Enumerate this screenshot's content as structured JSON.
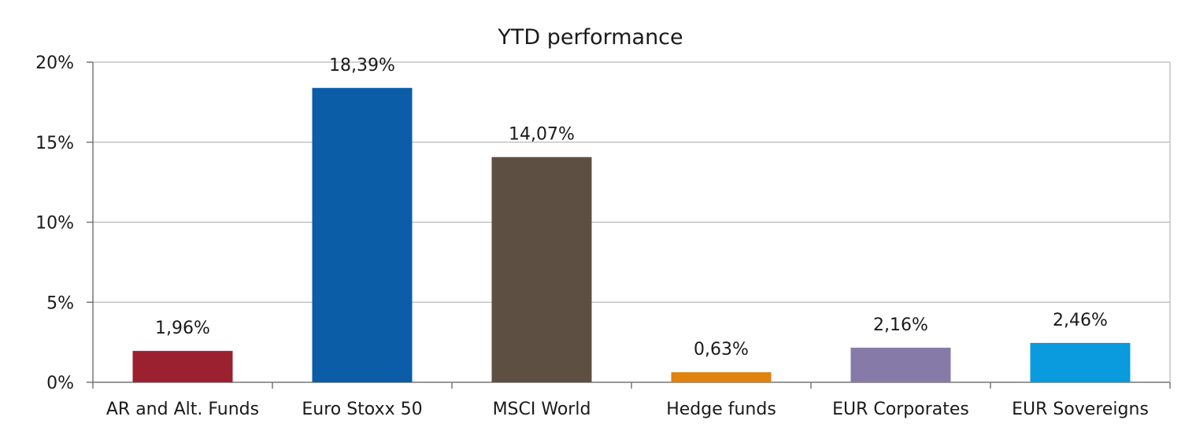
{
  "chart_data": {
    "type": "bar",
    "title": "YTD performance",
    "xlabel": "",
    "ylabel": "",
    "categories": [
      "AR and Alt. Funds",
      "Euro Stoxx 50",
      "MSCI World",
      "Hedge funds",
      "EUR Corporates",
      "EUR Sovereigns"
    ],
    "values": [
      1.96,
      18.39,
      14.07,
      0.63,
      2.16,
      2.46
    ],
    "data_labels": [
      "1,96%",
      "18,39%",
      "14,07%",
      "0,63%",
      "2,16%",
      "2,46%"
    ],
    "colors": [
      "#9b2030",
      "#0b5da8",
      "#5d4f42",
      "#e0820e",
      "#857aa8",
      "#0a9ade"
    ],
    "ylim": [
      0,
      20
    ],
    "yticks": [
      0,
      5,
      10,
      15,
      20
    ],
    "ytick_labels": [
      "0%",
      "5%",
      "10%",
      "15%",
      "20%"
    ],
    "grid": true,
    "legend": "none"
  }
}
